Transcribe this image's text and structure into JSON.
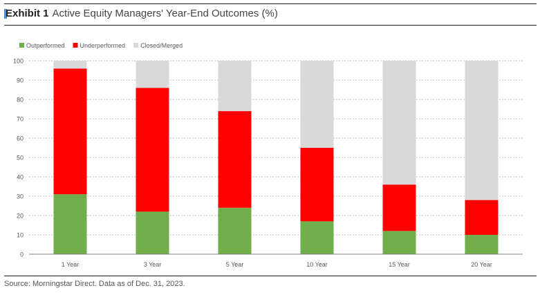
{
  "title": {
    "label": "Exhibit 1",
    "text": "Active Equity Managers' Year-End Outcomes (%)"
  },
  "source": "Source: Morningstar Direct. Data as of Dec. 31, 2023.",
  "colors": {
    "outperformed": "#6fae4a",
    "underperformed": "#ff0000",
    "closed": "#d9d9d9"
  },
  "chart_data": {
    "type": "bar",
    "stacked": true,
    "title": "Active Equity Managers' Year-End Outcomes (%)",
    "categories": [
      "1 Year",
      "3 Year",
      "5 Year",
      "10 Year",
      "15 Year",
      "20 Year"
    ],
    "series": [
      {
        "name": "Outperformed",
        "values": [
          31,
          22,
          24,
          17,
          12,
          10
        ]
      },
      {
        "name": "Underperformed",
        "values": [
          65,
          64,
          50,
          38,
          24,
          18
        ]
      },
      {
        "name": "Closed/Merged",
        "values": [
          4,
          14,
          26,
          45,
          64,
          72
        ]
      }
    ],
    "ylim": [
      0,
      100
    ],
    "yticks": [
      0,
      10,
      20,
      30,
      40,
      50,
      60,
      70,
      80,
      90,
      100
    ],
    "grid": true,
    "legend": "top-left"
  }
}
